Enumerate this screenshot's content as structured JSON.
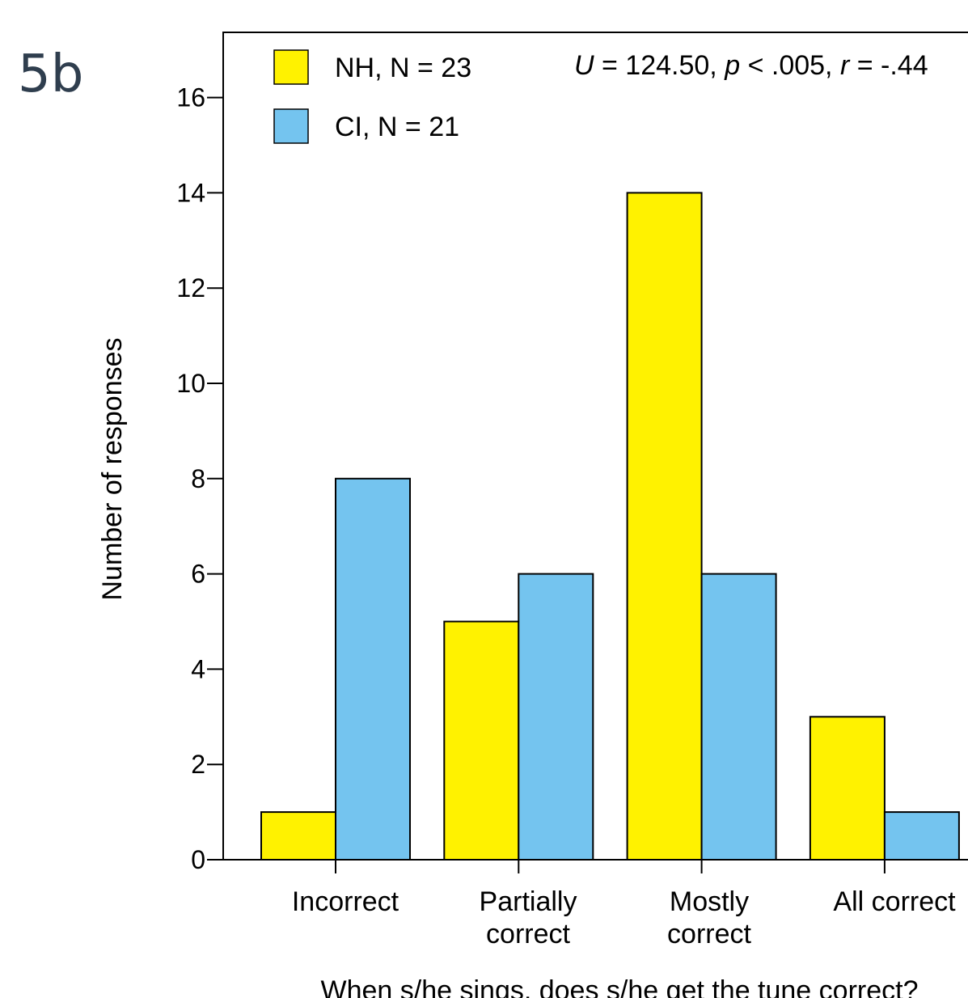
{
  "panel_label": "5b",
  "chart_data": {
    "type": "bar",
    "title": "",
    "xlabel": "When s/he sings, does s/he get the tune correct?",
    "ylabel": "Number of responses",
    "categories": [
      [
        "Incorrect"
      ],
      [
        "Partially",
        "correct"
      ],
      [
        "Mostly",
        "correct"
      ],
      [
        "All correct"
      ]
    ],
    "series": [
      {
        "name": "NH, N = 23",
        "color": "#fff200",
        "values": [
          1,
          5,
          14,
          3
        ]
      },
      {
        "name": "CI, N = 21",
        "color": "#74c4ef",
        "values": [
          8,
          6,
          6,
          1
        ]
      }
    ],
    "ylim": [
      0,
      17
    ],
    "yticks": [
      0,
      2,
      4,
      6,
      8,
      10,
      12,
      14,
      16
    ],
    "grid": false,
    "legend_position": "top-left",
    "annotation": {
      "parts": [
        {
          "text": "U",
          "italic": true
        },
        {
          "text": " = 124.50, ",
          "italic": false
        },
        {
          "text": "p",
          "italic": true
        },
        {
          "text": " < .005, ",
          "italic": false
        },
        {
          "text": "r",
          "italic": true
        },
        {
          "text": " = -.44",
          "italic": false
        }
      ]
    }
  }
}
